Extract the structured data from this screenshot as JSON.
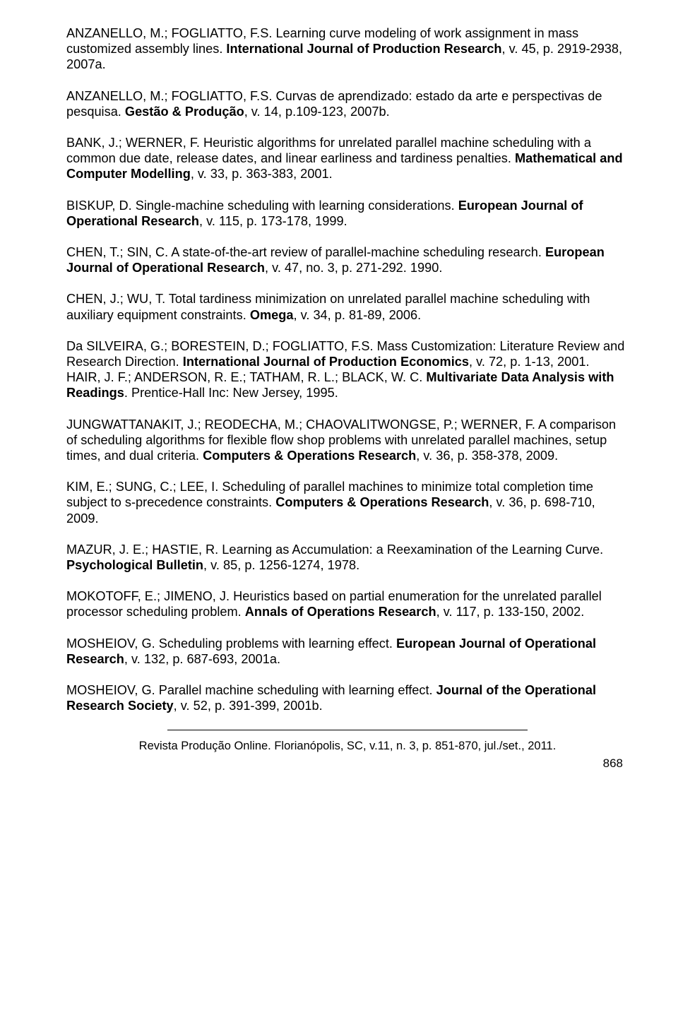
{
  "refs": [
    {
      "spans": [
        {
          "t": "ANZANELLO, M.; FOGLIATTO, F.S. Learning curve modeling of work assignment in mass customized assembly lines. ",
          "b": 0
        },
        {
          "t": "International Journal of Production Research",
          "b": 1
        },
        {
          "t": ", v. 45, p. 2919-2938, 2007a.",
          "b": 0
        }
      ]
    },
    {
      "spans": [
        {
          "t": "ANZANELLO, M.; FOGLIATTO, F.S. Curvas de aprendizado: estado da arte e perspectivas de pesquisa. ",
          "b": 0
        },
        {
          "t": "Gestão & Produção",
          "b": 1
        },
        {
          "t": ", v. 14, p.109-123, 2007b.",
          "b": 0
        }
      ]
    },
    {
      "spans": [
        {
          "t": "BANK, J.; WERNER, F. Heuristic algorithms for unrelated parallel machine scheduling with a common due date, release dates, and linear earliness and tardiness penalties. ",
          "b": 0
        },
        {
          "t": "Mathematical and Computer Modelling",
          "b": 1
        },
        {
          "t": ", v. 33, p. 363-383, 2001.",
          "b": 0
        }
      ]
    },
    {
      "spans": [
        {
          "t": "BISKUP, D. Single-machine scheduling with learning considerations. ",
          "b": 0
        },
        {
          "t": "European Journal of Operational Research",
          "b": 1
        },
        {
          "t": ", v. 115, p. 173-178, 1999.",
          "b": 0
        }
      ]
    },
    {
      "spans": [
        {
          "t": "CHEN, T.; SIN, C. A state-of-the-art review of parallel-machine scheduling research. ",
          "b": 0
        },
        {
          "t": "European Journal of Operational Research",
          "b": 1
        },
        {
          "t": ", v. 47, no. 3, p. 271-292. 1990.",
          "b": 0
        }
      ]
    },
    {
      "spans": [
        {
          "t": "CHEN, J.; WU, T. Total tardiness minimization on unrelated parallel machine scheduling with auxiliary equipment constraints. ",
          "b": 0
        },
        {
          "t": "Omega",
          "b": 1
        },
        {
          "t": ", v. 34, p. 81-89, 2006.",
          "b": 0
        }
      ]
    },
    {
      "spans": [
        {
          "t": "Da SILVEIRA, G.; BORESTEIN, D.; FOGLIATTO, F.S. Mass Customization: Literature Review and Research Direction. ",
          "b": 0
        },
        {
          "t": "International Journal of Production Economics",
          "b": 1
        },
        {
          "t": ", v. 72, p. 1-13, 2001.\nHAIR, J. F.; ANDERSON, R. E.; TATHAM, R. L.; BLACK, W. C. ",
          "b": 0
        },
        {
          "t": "Multivariate Data Analysis with Readings",
          "b": 1
        },
        {
          "t": ". Prentice-Hall Inc: New Jersey, 1995.",
          "b": 0
        }
      ]
    },
    {
      "spans": [
        {
          "t": "JUNGWATTANAKIT, J.; REODECHA, M.; CHAOVALITWONGSE, P.; WERNER, F. A comparison of scheduling algorithms for flexible flow shop problems with unrelated parallel machines, setup times, and dual criteria. ",
          "b": 0
        },
        {
          "t": "Computers & Operations Research",
          "b": 1
        },
        {
          "t": ", v. 36, p. 358-378, 2009.",
          "b": 0
        }
      ]
    },
    {
      "spans": [
        {
          "t": "KIM, E.; SUNG, C.; LEE, I. Scheduling of parallel machines to minimize total  completion time subject to s-precedence constraints. ",
          "b": 0
        },
        {
          "t": "Computers & Operations Research",
          "b": 1
        },
        {
          "t": ", v. 36, p. 698-710, 2009.",
          "b": 0
        }
      ]
    },
    {
      "spans": [
        {
          "t": "MAZUR, J. E.; HASTIE, R. Learning as Accumulation: a Reexamination of the Learning Curve. ",
          "b": 0
        },
        {
          "t": "Psychological Bulletin",
          "b": 1
        },
        {
          "t": ", v. 85, p. 1256-1274, 1978.",
          "b": 0
        }
      ]
    },
    {
      "spans": [
        {
          "t": "MOKOTOFF, E.; JIMENO, J. Heuristics based on partial enumeration for the unrelated parallel processor scheduling problem. ",
          "b": 0
        },
        {
          "t": "Annals of Operations Research",
          "b": 1
        },
        {
          "t": ", v. 117, p. 133-150, 2002.",
          "b": 0
        }
      ]
    },
    {
      "spans": [
        {
          "t": "MOSHEIOV, G. Scheduling problems with learning effect. ",
          "b": 0
        },
        {
          "t": "European Journal of Operational Research",
          "b": 1
        },
        {
          "t": ", v. 132, p. 687-693, 2001a.",
          "b": 0
        }
      ]
    },
    {
      "spans": [
        {
          "t": "MOSHEIOV, G. Parallel machine scheduling with learning effect. ",
          "b": 0
        },
        {
          "t": "Journal of the Operational Research Society",
          "b": 1
        },
        {
          "t": ", v. 52, p. 391-399, 2001b.",
          "b": 0
        }
      ]
    }
  ],
  "footer": {
    "text": "Revista Produção Online. Florianópolis, SC, v.11, n. 3, p. 851-870, jul./set., 2011.",
    "page": "868"
  }
}
